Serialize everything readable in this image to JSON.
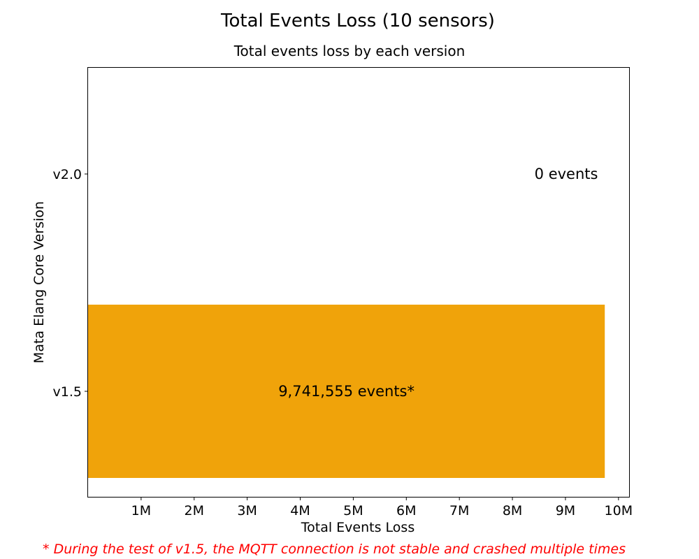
{
  "chart_data": {
    "type": "bar",
    "orientation": "horizontal",
    "title": "Total Events Loss (10 sensors)",
    "subtitle": "Total events loss by each version",
    "xlabel": "Total Events Loss",
    "ylabel": "Mata Elang Core Version",
    "xlim": [
      0,
      10200000
    ],
    "grid": false,
    "x_ticks": [
      {
        "value": 1000000,
        "label": "1M"
      },
      {
        "value": 2000000,
        "label": "2M"
      },
      {
        "value": 3000000,
        "label": "3M"
      },
      {
        "value": 4000000,
        "label": "4M"
      },
      {
        "value": 5000000,
        "label": "5M"
      },
      {
        "value": 6000000,
        "label": "6M"
      },
      {
        "value": 7000000,
        "label": "7M"
      },
      {
        "value": 8000000,
        "label": "8M"
      },
      {
        "value": 9000000,
        "label": "9M"
      },
      {
        "value": 10000000,
        "label": "10M"
      }
    ],
    "categories": [
      "v1.5",
      "v2.0"
    ],
    "values": [
      9741555,
      0
    ],
    "data_labels": [
      "9,741,555 events*",
      "0 events"
    ],
    "bar_color": "#F0A30A",
    "footnote": "* During the test of v1.5, the MQTT connection is not stable and crashed multiple times",
    "footnote_color": "#FF0000"
  }
}
